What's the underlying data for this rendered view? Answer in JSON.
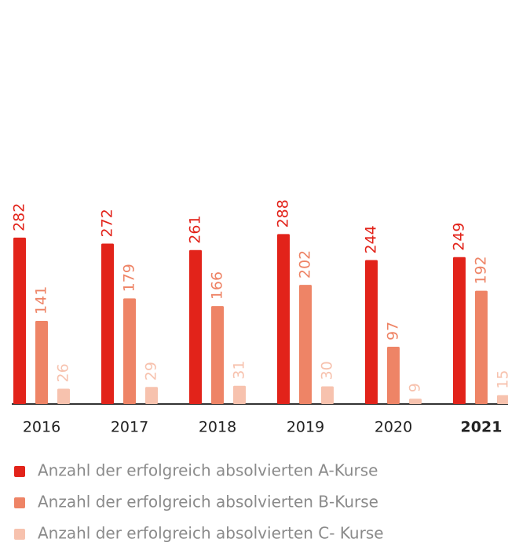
{
  "chart_data": {
    "type": "bar",
    "categories": [
      "2016",
      "2017",
      "2018",
      "2019",
      "2020",
      "2021"
    ],
    "highlight": "2021",
    "series": [
      {
        "name": "Anzahl der erfolgreich absolvierten A-Kurse",
        "color": "#e2231a",
        "values": [
          282,
          272,
          261,
          288,
          244,
          249
        ]
      },
      {
        "name": "Anzahl der erfolgreich absolvierten B-Kurse",
        "color": "#ee8466",
        "values": [
          141,
          179,
          166,
          202,
          97,
          192
        ]
      },
      {
        "name": "Anzahl der erfolgreich absolvierten C- Kurse",
        "color": "#f7c2ae",
        "values": [
          26,
          29,
          31,
          30,
          9,
          15
        ]
      }
    ]
  }
}
